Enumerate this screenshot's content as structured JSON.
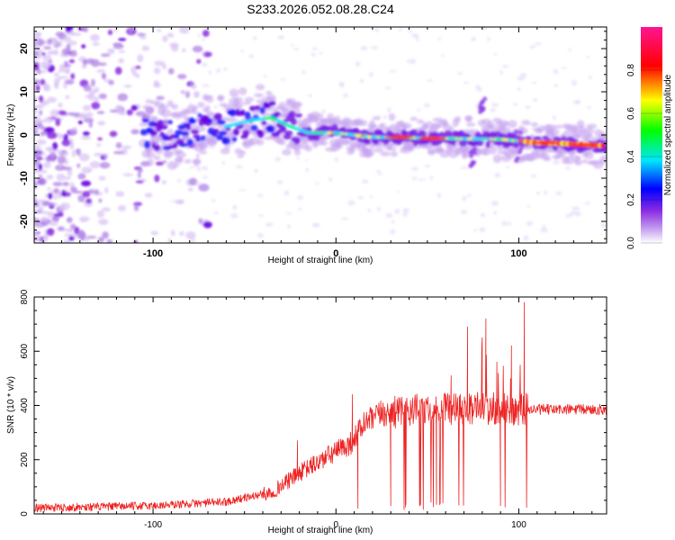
{
  "title": "S233.2026.052.08.28.C24",
  "chart_data": [
    {
      "type": "heatmap",
      "xlabel": "Height of straight line (km)",
      "ylabel": "Frequency (Hz)",
      "xlim": [
        -165,
        148
      ],
      "ylim": [
        -25,
        25
      ],
      "x_ticks": [
        -100,
        0,
        100
      ],
      "y_ticks": [
        -20,
        -10,
        0,
        10,
        20
      ],
      "colorbar": {
        "label": "Normalized spectral amplitude",
        "range": [
          0,
          1
        ],
        "ticks": [
          "0.0",
          "0.2",
          "0.4",
          "0.6",
          "0.8"
        ],
        "colors": [
          "#ffffff",
          "#8a2be2",
          "#0000ff",
          "#00e5ff",
          "#00ff00",
          "#ffff00",
          "#ff0000",
          "#ff0080"
        ]
      },
      "ridge": [
        {
          "x": -100,
          "y": 0.0
        },
        {
          "x": -80,
          "y": 1.0
        },
        {
          "x": -60,
          "y": 2.0
        },
        {
          "x": -45,
          "y": 3.5
        },
        {
          "x": -35,
          "y": 4.0
        },
        {
          "x": -25,
          "y": 2.0
        },
        {
          "x": -15,
          "y": 0.5
        },
        {
          "x": 0,
          "y": 0.5
        },
        {
          "x": 20,
          "y": -0.5
        },
        {
          "x": 60,
          "y": -0.8
        },
        {
          "x": 90,
          "y": -1.0
        },
        {
          "x": 110,
          "y": -1.8
        },
        {
          "x": 125,
          "y": -2.0
        },
        {
          "x": 148,
          "y": -2.5
        }
      ]
    },
    {
      "type": "line",
      "xlabel": "Height of straight line (km)",
      "ylabel": "SNR (10 * v/v)",
      "xlim": [
        -165,
        148
      ],
      "ylim": [
        0,
        800
      ],
      "x_ticks": [
        -100,
        0,
        100
      ],
      "y_ticks": [
        0,
        200,
        400,
        600,
        800
      ],
      "color": "#ee2222",
      "envelope": [
        {
          "x": -165,
          "y": 22
        },
        {
          "x": -100,
          "y": 30
        },
        {
          "x": -60,
          "y": 45
        },
        {
          "x": -35,
          "y": 80
        },
        {
          "x": -20,
          "y": 150
        },
        {
          "x": -5,
          "y": 210
        },
        {
          "x": 8,
          "y": 260
        },
        {
          "x": 15,
          "y": 330
        },
        {
          "x": 25,
          "y": 370
        },
        {
          "x": 45,
          "y": 385
        },
        {
          "x": 70,
          "y": 390
        },
        {
          "x": 100,
          "y": 385
        },
        {
          "x": 105,
          "y": 385
        },
        {
          "x": 148,
          "y": 385
        }
      ],
      "spikes": [
        {
          "x": -21,
          "y": 270
        },
        {
          "x": 9,
          "y": 440
        },
        {
          "x": 12,
          "y": 20
        },
        {
          "x": 30,
          "y": 30
        },
        {
          "x": 38,
          "y": 25
        },
        {
          "x": 46,
          "y": 30
        },
        {
          "x": 55,
          "y": 35
        },
        {
          "x": 63,
          "y": 510
        },
        {
          "x": 72,
          "y": 690
        },
        {
          "x": 80,
          "y": 650
        },
        {
          "x": 82,
          "y": 720
        },
        {
          "x": 88,
          "y": 560
        },
        {
          "x": 90,
          "y": 30
        },
        {
          "x": 96,
          "y": 620
        },
        {
          "x": 103,
          "y": 780
        }
      ]
    }
  ]
}
